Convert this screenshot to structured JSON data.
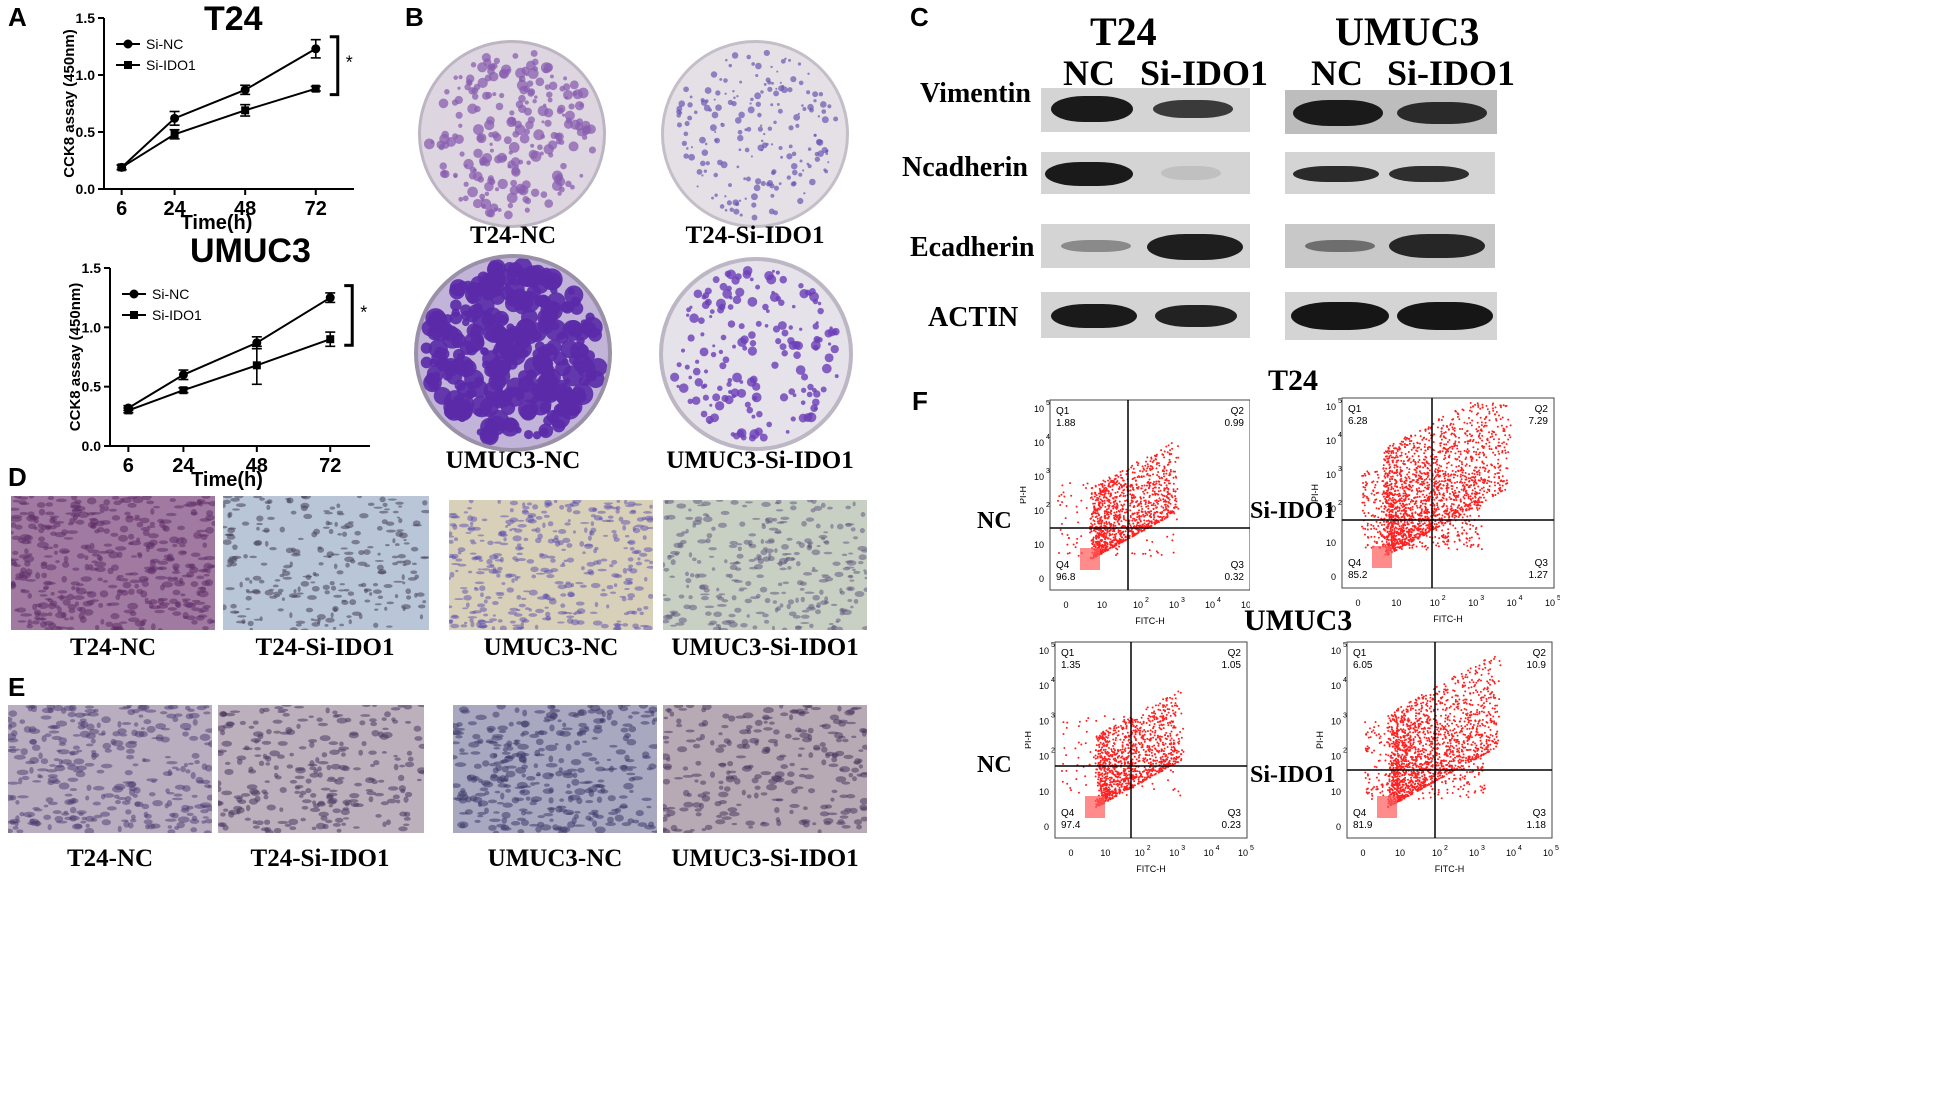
{
  "panels": {
    "A": "A",
    "B": "B",
    "C": "C",
    "D": "D",
    "E": "E",
    "F": "F"
  },
  "chart_data": [
    {
      "type": "line",
      "title": "T24",
      "xlabel": "Time(h)",
      "ylabel": "CCK8 assay (450nm)",
      "x": [
        6,
        24,
        48,
        72
      ],
      "xlim": [
        0,
        85
      ],
      "ylim": [
        0.0,
        1.5
      ],
      "yticks": [
        "0.0",
        "0.5",
        "1.0",
        "1.5"
      ],
      "xticks": [
        "6",
        "24",
        "48",
        "72"
      ],
      "legend": "top-left",
      "significance": "*",
      "series": [
        {
          "name": "Si-NC",
          "marker": "circle",
          "values": [
            0.19,
            0.62,
            0.87,
            1.23
          ],
          "errors": [
            0.02,
            0.06,
            0.04,
            0.08
          ]
        },
        {
          "name": "Si-IDO1",
          "marker": "square",
          "values": [
            0.19,
            0.48,
            0.69,
            0.88
          ],
          "errors": [
            0.02,
            0.04,
            0.05,
            0.02
          ]
        }
      ]
    },
    {
      "type": "line",
      "title": "UMUC3",
      "xlabel": "Time(h)",
      "ylabel": "CCK8 assay (450nm)",
      "x": [
        6,
        24,
        48,
        72
      ],
      "xlim": [
        0,
        85
      ],
      "ylim": [
        0.0,
        1.5
      ],
      "yticks": [
        "0.0",
        "0.5",
        "1.0",
        "1.5"
      ],
      "xticks": [
        "6",
        "24",
        "48",
        "72"
      ],
      "legend": "top-left",
      "significance": "*",
      "series": [
        {
          "name": "Si-NC",
          "marker": "circle",
          "values": [
            0.32,
            0.6,
            0.87,
            1.25
          ],
          "errors": [
            0.02,
            0.04,
            0.05,
            0.04
          ]
        },
        {
          "name": "Si-IDO1",
          "marker": "square",
          "values": [
            0.3,
            0.47,
            0.68,
            0.9
          ],
          "errors": [
            0.02,
            0.02,
            0.16,
            0.06
          ]
        }
      ]
    }
  ],
  "colony": {
    "t24_nc": "T24-NC",
    "t24_si": "T24-Si-IDO1",
    "umuc3_nc": "UMUC3-NC",
    "umuc3_si": "UMUC3-Si-IDO1"
  },
  "blot": {
    "t24": "T24",
    "umuc3": "UMUC3",
    "nc": "NC",
    "si": "Si-IDO1",
    "rows": [
      "Vimentin",
      "Ncadherin",
      "Ecadherin",
      "ACTIN"
    ]
  },
  "migration": {
    "t24_nc": "T24-NC",
    "t24_si": "T24-Si-IDO1",
    "umuc3_nc": "UMUC3-NC",
    "umuc3_si": "UMUC3-Si-IDO1"
  },
  "invasion": {
    "t24_nc": "T24-NC",
    "t24_si": "T24-Si-IDO1",
    "umuc3_nc": "UMUC3-NC",
    "umuc3_si": "UMUC3-Si-IDO1"
  },
  "flow": {
    "t24": "T24",
    "umuc3": "UMUC3",
    "nc": "NC",
    "si": "Si-IDO1",
    "xaxis": "FITC-H",
    "yaxis": "PI-H",
    "xticks": [
      "0",
      "10",
      "10",
      "10",
      "10",
      "10"
    ],
    "exps": [
      "",
      "2",
      "3",
      "4",
      "5"
    ],
    "plots": [
      {
        "q1": "Q1",
        "q1v": "1.88",
        "q2": "Q2",
        "q2v": "0.99",
        "q3": "Q3",
        "q3v": "0.32",
        "q4": "Q4",
        "q4v": "96.8"
      },
      {
        "q1": "Q1",
        "q1v": "6.28",
        "q2": "Q2",
        "q2v": "7.29",
        "q3": "Q3",
        "q3v": "1.27",
        "q4": "Q4",
        "q4v": "85.2"
      },
      {
        "q1": "Q1",
        "q1v": "1.35",
        "q2": "Q2",
        "q2v": "1.05",
        "q3": "Q3",
        "q3v": "0.23",
        "q4": "Q4",
        "q4v": "97.4"
      },
      {
        "q1": "Q1",
        "q1v": "6.05",
        "q2": "Q2",
        "q2v": "10.9",
        "q3": "Q3",
        "q3v": "1.18",
        "q4": "Q4",
        "q4v": "81.9"
      }
    ]
  },
  "colors": {
    "colony_stain": "#7a4fc0",
    "micro_bg1": "#b8a9c8",
    "flow_dots": "#ff2020"
  }
}
